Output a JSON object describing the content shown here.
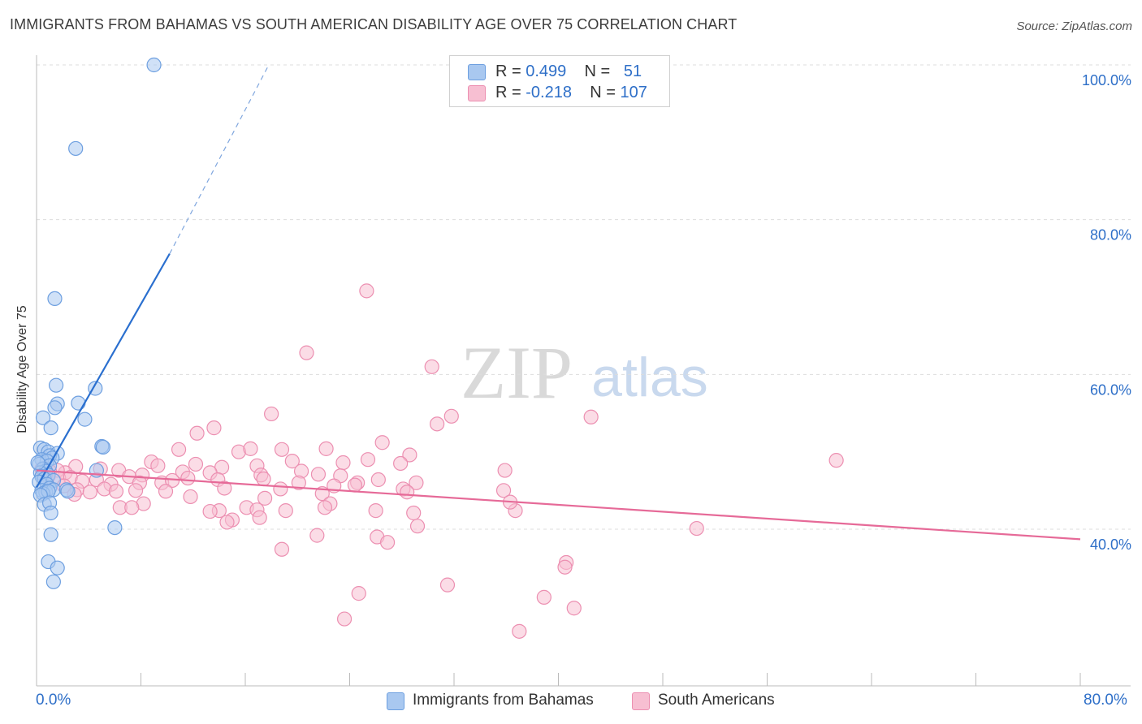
{
  "title": "IMMIGRANTS FROM BAHAMAS VS SOUTH AMERICAN DISABILITY AGE OVER 75 CORRELATION CHART",
  "source": "Source: ZipAtlas.com",
  "watermark": {
    "zip": "ZIP",
    "atlas": "atlas"
  },
  "legend": {
    "rows": [
      {
        "r_label": "R = ",
        "r_value": "0.499",
        "n_label": "N = ",
        "n_value": "51",
        "color": "#a9c8f0",
        "border": "#6d9fe0"
      },
      {
        "r_label": "R = ",
        "r_value": "-0.218",
        "n_label": "N = ",
        "n_value": "107",
        "color": "#f7bfd2",
        "border": "#ec8fb1"
      }
    ]
  },
  "bottom_legend": [
    {
      "label": "Immigrants from Bahamas",
      "color": "#a9c8f0",
      "border": "#6d9fe0"
    },
    {
      "label": "South Americans",
      "color": "#f7bfd2",
      "border": "#ec8fb1"
    }
  ],
  "x_axis": {
    "min_label": "0.0%",
    "max_label": "80.0%"
  },
  "chart_data": {
    "type": "scatter",
    "title": "IMMIGRANTS FROM BAHAMAS VS SOUTH AMERICAN DISABILITY AGE OVER 75 CORRELATION CHART",
    "xlabel": "",
    "ylabel": "Disability Age Over 75",
    "xlim": [
      0,
      80
    ],
    "ylim": [
      22,
      102
    ],
    "y_ticks": [
      40,
      60,
      80,
      100
    ],
    "y_tick_labels": [
      "40.0%",
      "60.0%",
      "80.0%",
      "100.0%"
    ],
    "grid": true,
    "series": [
      {
        "name": "Immigrants from Bahamas",
        "color": "#6d9fe0",
        "fill": "#a9c8f0",
        "R": 0.499,
        "N": 51,
        "trend": {
          "x": [
            0,
            10.2
          ],
          "y": [
            45.4,
            75.6
          ],
          "dashed_to": [
            17.8,
            100.0
          ],
          "color": "#2a6fcf"
        },
        "points": [
          [
            9.0,
            100.0
          ],
          [
            3.0,
            89.2
          ],
          [
            1.4,
            69.8
          ],
          [
            1.5,
            58.6
          ],
          [
            4.5,
            58.2
          ],
          [
            3.2,
            56.3
          ],
          [
            1.6,
            56.2
          ],
          [
            1.4,
            55.7
          ],
          [
            0.5,
            54.4
          ],
          [
            3.7,
            54.2
          ],
          [
            1.1,
            53.1
          ],
          [
            5.0,
            50.7
          ],
          [
            5.1,
            50.6
          ],
          [
            0.3,
            50.5
          ],
          [
            0.6,
            50.3
          ],
          [
            0.9,
            50.0
          ],
          [
            1.6,
            49.8
          ],
          [
            1.0,
            49.5
          ],
          [
            1.2,
            49.2
          ],
          [
            0.4,
            49.0
          ],
          [
            0.8,
            48.8
          ],
          [
            0.2,
            48.4
          ],
          [
            1.0,
            48.2
          ],
          [
            0.5,
            47.8
          ],
          [
            0.7,
            47.5
          ],
          [
            0.3,
            47.3
          ],
          [
            4.6,
            47.6
          ],
          [
            0.9,
            47.0
          ],
          [
            0.4,
            46.8
          ],
          [
            0.6,
            46.5
          ],
          [
            1.3,
            46.3
          ],
          [
            0.2,
            46.1
          ],
          [
            0.8,
            45.8
          ],
          [
            1.0,
            45.3
          ],
          [
            0.4,
            45.0
          ],
          [
            0.7,
            44.8
          ],
          [
            1.3,
            45.1
          ],
          [
            2.3,
            45.1
          ],
          [
            0.5,
            44.6
          ],
          [
            0.9,
            44.9
          ],
          [
            2.4,
            44.9
          ],
          [
            0.3,
            44.4
          ],
          [
            0.6,
            43.2
          ],
          [
            1.0,
            43.4
          ],
          [
            1.1,
            42.1
          ],
          [
            6.0,
            40.2
          ],
          [
            1.1,
            39.3
          ],
          [
            0.9,
            35.8
          ],
          [
            1.6,
            35.0
          ],
          [
            1.3,
            33.2
          ],
          [
            0.1,
            48.6
          ]
        ]
      },
      {
        "name": "South Americans",
        "color": "#ec8fb1",
        "fill": "#f7bfd2",
        "R": -0.218,
        "N": 107,
        "trend": {
          "x": [
            0,
            80
          ],
          "y": [
            47.6,
            38.7
          ],
          "color": "#e66a98"
        },
        "points": [
          [
            25.3,
            70.8
          ],
          [
            20.7,
            62.8
          ],
          [
            30.3,
            61.0
          ],
          [
            31.8,
            54.6
          ],
          [
            42.5,
            54.5
          ],
          [
            18.0,
            54.9
          ],
          [
            30.7,
            53.6
          ],
          [
            13.6,
            53.1
          ],
          [
            12.3,
            52.4
          ],
          [
            26.5,
            51.2
          ],
          [
            10.9,
            50.3
          ],
          [
            15.5,
            50.0
          ],
          [
            8.8,
            48.7
          ],
          [
            22.2,
            50.4
          ],
          [
            28.6,
            49.6
          ],
          [
            16.4,
            50.4
          ],
          [
            18.8,
            50.3
          ],
          [
            19.6,
            48.8
          ],
          [
            23.5,
            48.6
          ],
          [
            27.9,
            48.5
          ],
          [
            12.2,
            48.4
          ],
          [
            9.3,
            48.2
          ],
          [
            14.2,
            48.0
          ],
          [
            16.9,
            48.2
          ],
          [
            20.3,
            47.5
          ],
          [
            35.9,
            47.6
          ],
          [
            3.0,
            48.1
          ],
          [
            4.9,
            47.8
          ],
          [
            6.3,
            47.6
          ],
          [
            8.1,
            47.0
          ],
          [
            11.2,
            47.4
          ],
          [
            13.3,
            47.3
          ],
          [
            17.2,
            47.0
          ],
          [
            21.6,
            47.1
          ],
          [
            23.3,
            46.9
          ],
          [
            2.2,
            47.3
          ],
          [
            1.6,
            47.6
          ],
          [
            1.0,
            47.5
          ],
          [
            0.4,
            47.8
          ],
          [
            0.9,
            46.8
          ],
          [
            1.7,
            46.6
          ],
          [
            2.6,
            46.7
          ],
          [
            3.5,
            46.2
          ],
          [
            4.6,
            46.4
          ],
          [
            5.7,
            45.8
          ],
          [
            7.1,
            46.8
          ],
          [
            7.9,
            46.0
          ],
          [
            9.6,
            46.0
          ],
          [
            10.4,
            46.3
          ],
          [
            11.6,
            46.6
          ],
          [
            13.9,
            46.4
          ],
          [
            17.4,
            46.5
          ],
          [
            20.1,
            46.0
          ],
          [
            22.8,
            45.6
          ],
          [
            24.6,
            46.0
          ],
          [
            26.2,
            46.4
          ],
          [
            29.1,
            46.0
          ],
          [
            2.1,
            45.6
          ],
          [
            3.1,
            45.1
          ],
          [
            4.1,
            44.8
          ],
          [
            5.2,
            45.2
          ],
          [
            6.1,
            44.9
          ],
          [
            7.6,
            45.0
          ],
          [
            9.9,
            44.9
          ],
          [
            14.4,
            45.3
          ],
          [
            18.7,
            45.2
          ],
          [
            21.9,
            44.6
          ],
          [
            24.4,
            45.7
          ],
          [
            28.1,
            45.2
          ],
          [
            28.4,
            44.8
          ],
          [
            2.9,
            44.5
          ],
          [
            11.8,
            44.2
          ],
          [
            17.5,
            44.0
          ],
          [
            22.5,
            43.3
          ],
          [
            8.2,
            43.3
          ],
          [
            6.4,
            42.8
          ],
          [
            7.3,
            42.8
          ],
          [
            14.0,
            42.4
          ],
          [
            16.1,
            42.8
          ],
          [
            16.9,
            42.5
          ],
          [
            13.3,
            42.3
          ],
          [
            19.1,
            42.4
          ],
          [
            22.1,
            42.8
          ],
          [
            26.0,
            42.4
          ],
          [
            28.9,
            42.1
          ],
          [
            36.7,
            42.4
          ],
          [
            17.1,
            41.5
          ],
          [
            15.0,
            41.2
          ],
          [
            14.6,
            40.9
          ],
          [
            29.2,
            40.4
          ],
          [
            50.6,
            40.1
          ],
          [
            26.1,
            39.0
          ],
          [
            21.5,
            39.2
          ],
          [
            26.9,
            38.3
          ],
          [
            18.8,
            37.4
          ],
          [
            40.6,
            35.7
          ],
          [
            40.5,
            35.1
          ],
          [
            31.5,
            32.8
          ],
          [
            24.7,
            31.7
          ],
          [
            38.9,
            31.2
          ],
          [
            41.2,
            29.8
          ],
          [
            23.6,
            28.4
          ],
          [
            37.0,
            26.8
          ],
          [
            61.3,
            48.9
          ],
          [
            35.8,
            45.0
          ],
          [
            36.3,
            43.5
          ],
          [
            25.4,
            49.0
          ]
        ]
      }
    ]
  }
}
